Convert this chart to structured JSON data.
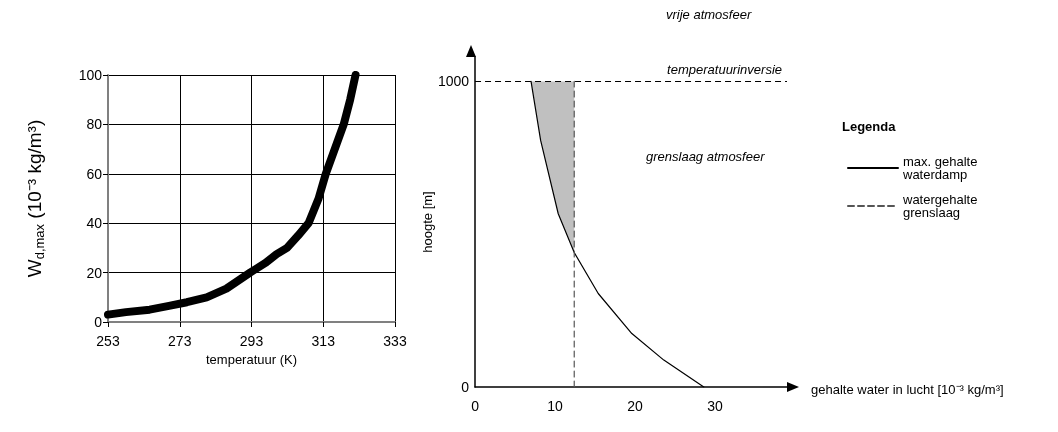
{
  "chart_data": [
    {
      "type": "line",
      "xlabel": "temperatuur (K)",
      "ylabel": "W$_{d,max}$ (10⁻³ kg/m³)",
      "xlim": [
        253,
        333
      ],
      "xticks": [
        253,
        273,
        293,
        313,
        333
      ],
      "ylim": [
        0,
        100
      ],
      "yticks": [
        0,
        20,
        40,
        60,
        80,
        100
      ],
      "grid": true,
      "marker": "none",
      "series": [
        {
          "color": "#000000",
          "x": [
            253,
            258,
            264.6,
            270,
            275,
            280.5,
            286,
            292.6,
            297,
            300,
            302.9,
            306,
            308.9,
            311.7,
            313.7,
            316.2,
            318.7,
            320.5,
            322
          ],
          "values": [
            3,
            4,
            5,
            6.5,
            8,
            10,
            13.5,
            20,
            24,
            27.5,
            30,
            35,
            40,
            50,
            60,
            70,
            80,
            90,
            100
          ]
        }
      ]
    },
    {
      "type": "line",
      "xlabel": "gehalte water in lucht [10⁻³ kg/m³]",
      "ylabel": "hoogte [m]",
      "legend_title": "Legenda",
      "legend": "right",
      "xlim": [
        0,
        39
      ],
      "xticks": [
        0,
        10,
        20,
        30
      ],
      "ylim": [
        0,
        1080
      ],
      "yticks": [
        0,
        {
          "value": 1000,
          "label": "1000"
        }
      ],
      "marker": "none",
      "series": [
        {
          "type": "area",
          "color": "#c0c0c0",
          "x": [
            7.0,
            8.2,
            10.4,
            12.4,
            12.4
          ],
          "values": [
            1000,
            807,
            567,
            440,
            1000
          ]
        },
        {
          "name": "max. gehalte waterdamp",
          "color": "#000000",
          "x": [
            7.0,
            8.2,
            10.4,
            12.4,
            15.4,
            19.6,
            23.6,
            28.6
          ],
          "values": [
            1000,
            807,
            567,
            440,
            306,
            175,
            88,
            0
          ]
        },
        {
          "name": "watergehalte grenslaag",
          "color": "#555555",
          "line_style": "dashed",
          "x": [
            12.4,
            12.4
          ],
          "values": [
            0,
            1000
          ]
        }
      ],
      "ref_lines": [
        {
          "axis": "y",
          "value": 1000,
          "label": "temperatuurinversie",
          "line_style": "dashed"
        }
      ],
      "annotations": [
        "vrije atmosfeer",
        "grenslaag atmosfeer"
      ]
    }
  ]
}
